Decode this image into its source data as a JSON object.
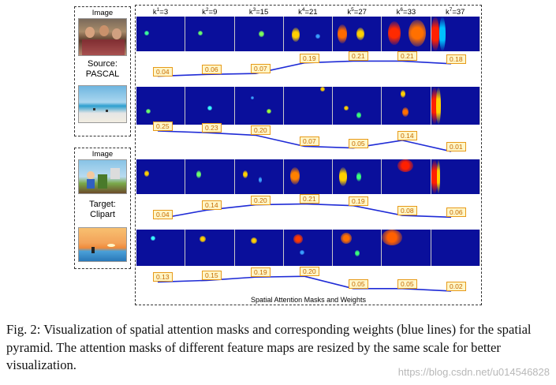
{
  "source_panel": {
    "image_label": "Image",
    "domain_label_line1": "Source:",
    "domain_label_line2": "PASCAL"
  },
  "target_panel": {
    "image_label": "Image",
    "domain_label_line1": "Target:",
    "domain_label_line2": "Clipart"
  },
  "kernel_labels": [
    {
      "base": "k",
      "sup": "1",
      "rest": "=3"
    },
    {
      "base": "k",
      "sup": "2",
      "rest": "=9"
    },
    {
      "base": "k",
      "sup": "3",
      "rest": "=15"
    },
    {
      "base": "k",
      "sup": "4",
      "rest": "=21"
    },
    {
      "base": "k",
      "sup": "5",
      "rest": "=27"
    },
    {
      "base": "k",
      "sup": "6",
      "rest": "=33"
    },
    {
      "base": "k",
      "sup": "7",
      "rest": "=37"
    }
  ],
  "weights": {
    "row1": [
      "0.04",
      "0.06",
      "0.07",
      "0.19",
      "0.21",
      "0.21",
      "0.18"
    ],
    "row2": [
      "0.25",
      "0.23",
      "0.20",
      "0.07",
      "0.05",
      "0.14",
      "0.01"
    ],
    "row3": [
      "0.04",
      "0.14",
      "0.20",
      "0.21",
      "0.19",
      "0.08",
      "0.06"
    ],
    "row4": [
      "0.13",
      "0.15",
      "0.19",
      "0.20",
      "0.05",
      "0.05",
      "0.02"
    ]
  },
  "footer": "Spatial Attention Masks and Weights",
  "caption": "Fig. 2: Visualization of spatial attention masks and corresponding weights (blue lines) for the spatial pyramid. The attention masks of different feature maps are resized by the same scale for better visualization.",
  "watermark": "https://blog.csdn.net/u014546828",
  "colors": {
    "mask_bg": "#0a0f9b",
    "line": "#1f2bd6",
    "weight_border": "#e79a1a",
    "weight_text": "#c66b00"
  }
}
